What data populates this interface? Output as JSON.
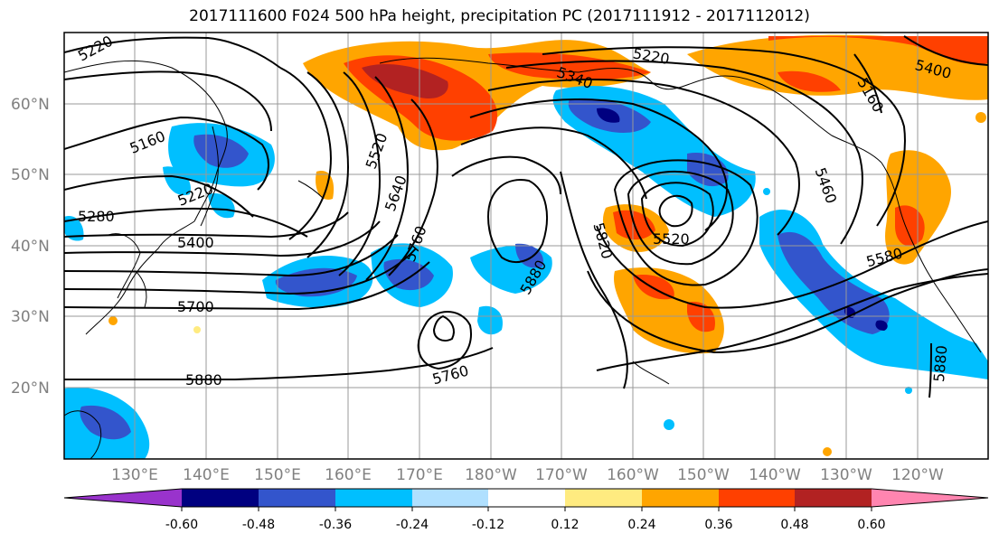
{
  "title": "2017111600 F024 500 hPa height, precipitation PC (2017111912 - 2017112012)",
  "latitude_labels": [
    "60°N",
    "50°N",
    "40°N",
    "30°N",
    "20°N"
  ],
  "longitude_labels": [
    "130°E",
    "140°E",
    "150°E",
    "160°E",
    "170°E",
    "180°W",
    "170°W",
    "160°W",
    "150°W",
    "140°W",
    "130°W",
    "120°W"
  ],
  "colorbar": {
    "colors": [
      "#9933cc",
      "#000080",
      "#3355cc",
      "#00bfff",
      "#b0e0ff",
      "#ffffff",
      "#ffeb80",
      "#ffa500",
      "#ff4000",
      "#b22222",
      "#ff85b0"
    ],
    "tick_labels": [
      "-0.60",
      "-0.48",
      "-0.36",
      "-0.24",
      "-0.12",
      "0.12",
      "0.24",
      "0.36",
      "0.48",
      "0.60"
    ]
  },
  "contour_labels": [
    "5220",
    "5160",
    "5220",
    "5280",
    "5400",
    "5700",
    "5880",
    "5520",
    "5640",
    "5760",
    "5760",
    "5880",
    "5820",
    "5340",
    "5220",
    "5520",
    "5460",
    "5580",
    "5880",
    "5400",
    "5160"
  ]
}
